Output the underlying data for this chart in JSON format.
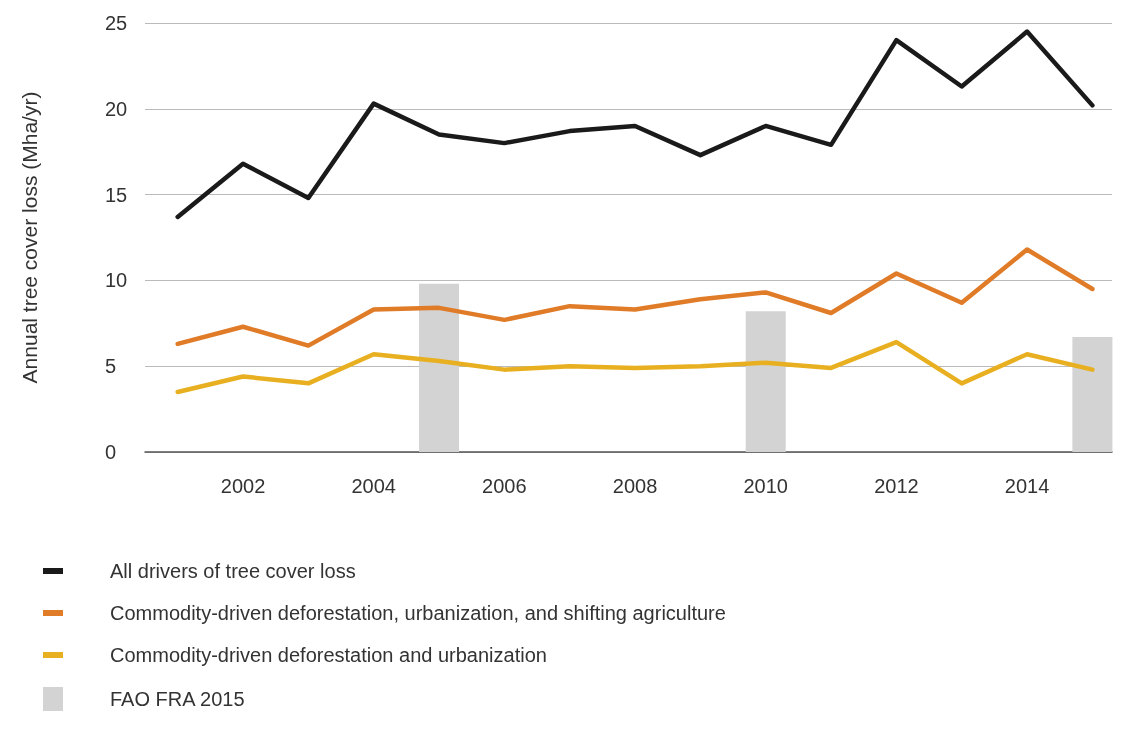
{
  "chart_data": {
    "type": "line",
    "ylabel": "Annual tree cover loss (Mha/yr)",
    "x": [
      2001,
      2002,
      2003,
      2004,
      2005,
      2006,
      2007,
      2008,
      2009,
      2010,
      2011,
      2012,
      2013,
      2014,
      2015
    ],
    "series": [
      {
        "name": "All drivers of tree cover loss",
        "color": "#1a1a1a",
        "values": [
          13.7,
          16.8,
          14.8,
          20.3,
          18.5,
          18.0,
          18.7,
          19.0,
          17.3,
          19.0,
          17.9,
          24.0,
          21.3,
          24.5,
          20.2
        ]
      },
      {
        "name": "Commodity-driven deforestation, urbanization, and shifting agriculture",
        "color": "#e07b28",
        "values": [
          6.3,
          7.3,
          6.2,
          8.3,
          8.4,
          7.7,
          8.5,
          8.3,
          8.9,
          9.3,
          8.1,
          10.4,
          8.7,
          11.8,
          9.5
        ]
      },
      {
        "name": "Commodity-driven deforestation and urbanization",
        "color": "#e8b021",
        "values": [
          3.5,
          4.4,
          4.0,
          5.7,
          5.3,
          4.8,
          5.0,
          4.9,
          5.0,
          5.2,
          4.9,
          6.4,
          4.0,
          5.7,
          4.8
        ]
      },
      {
        "name": "FAO FRA 2015",
        "type": "bar",
        "color": "#d3d3d3",
        "x": [
          2005,
          2010,
          2015
        ],
        "values": [
          9.8,
          8.2,
          6.7
        ]
      }
    ],
    "xlim": [
      2000.5,
      2015.3
    ],
    "xticks": [
      2002,
      2004,
      2006,
      2008,
      2010,
      2012,
      2014
    ],
    "ylim": [
      0,
      25
    ],
    "yticks": [
      0,
      5,
      10,
      15,
      20,
      25
    ],
    "grid": "y",
    "legend": "bottom left",
    "marker": "none",
    "line_style": "solid"
  }
}
